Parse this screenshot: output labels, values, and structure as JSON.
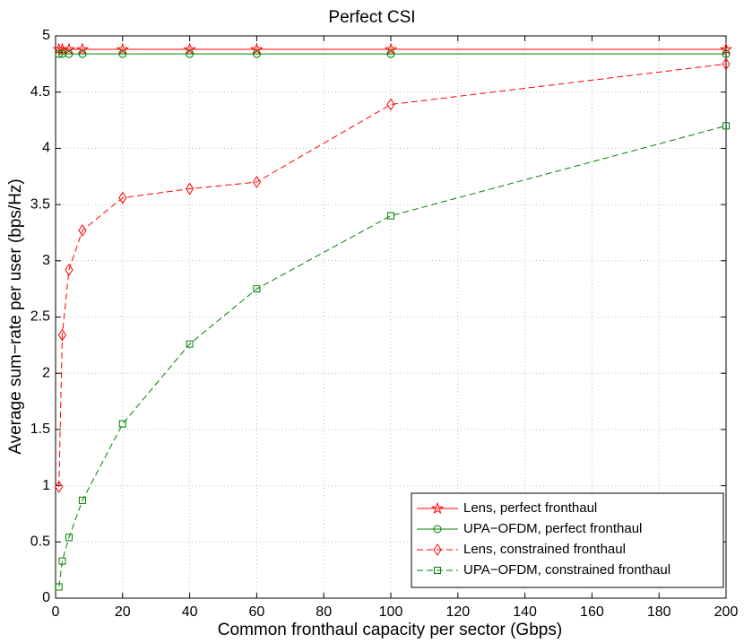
{
  "chart_data": {
    "type": "line",
    "title": "Perfect CSI",
    "xlabel": "Common fronthaul capacity per sector (Gbps)",
    "ylabel": "Average sum−rate per user (bps/Hz)",
    "x": [
      1,
      2,
      4,
      8,
      20,
      40,
      60,
      100,
      200
    ],
    "series": [
      {
        "name": "Lens, perfect fronthaul",
        "color": "#ff0000",
        "marker": "star",
        "dashed": false,
        "values": [
          4.88,
          4.88,
          4.88,
          4.88,
          4.88,
          4.88,
          4.88,
          4.88,
          4.88
        ]
      },
      {
        "name": "UPA−OFDM, perfect fronthaul",
        "color": "#008000",
        "marker": "circle",
        "dashed": false,
        "values": [
          4.84,
          4.84,
          4.84,
          4.84,
          4.84,
          4.84,
          4.84,
          4.84,
          4.84
        ]
      },
      {
        "name": "Lens, constrained fronthaul",
        "color": "#ff0000",
        "marker": "diamond",
        "dashed": true,
        "values": [
          0.99,
          2.34,
          2.92,
          3.27,
          3.56,
          3.64,
          3.7,
          4.39,
          4.75
        ]
      },
      {
        "name": "UPA−OFDM, constrained fronthaul",
        "color": "#008000",
        "marker": "square",
        "dashed": true,
        "values": [
          0.1,
          0.33,
          0.54,
          0.87,
          1.55,
          2.26,
          2.75,
          3.4,
          4.2
        ]
      }
    ],
    "xlim": [
      0,
      200
    ],
    "xticks": [
      0,
      20,
      40,
      60,
      80,
      100,
      120,
      140,
      160,
      180,
      200
    ],
    "ylim": [
      0,
      5
    ],
    "yticks": [
      0,
      0.5,
      1,
      1.5,
      2,
      2.5,
      3,
      3.5,
      4,
      4.5,
      5
    ],
    "grid": true,
    "legend": "lower right"
  }
}
